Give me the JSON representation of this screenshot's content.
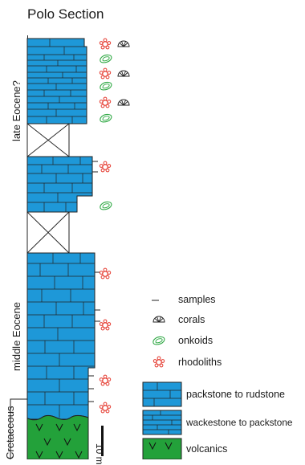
{
  "title": "Polo Section",
  "ages": {
    "late": "late Eocene?",
    "middle": "middle Eocene",
    "cretaceous": "Cretaceous"
  },
  "scale": {
    "label": "10 m"
  },
  "legend": {
    "samples": "samples",
    "corals": "corals",
    "onkoids": "onkoids",
    "rhodoliths": "rhodoliths",
    "packstone": "packstone to rudstone",
    "wackestone": "wackestone to packstone",
    "volcanics": "volcanics"
  },
  "colors": {
    "limestone": "#1e98d8",
    "volcanics": "#23a13a",
    "rhodolith": "#e53b30",
    "onkoid": "#2ea843",
    "line": "#222222"
  },
  "icons": [
    "rhodolith-icon",
    "coral-icon",
    "onkoid-icon",
    "sample-tick",
    "volcanic-v-icon"
  ]
}
